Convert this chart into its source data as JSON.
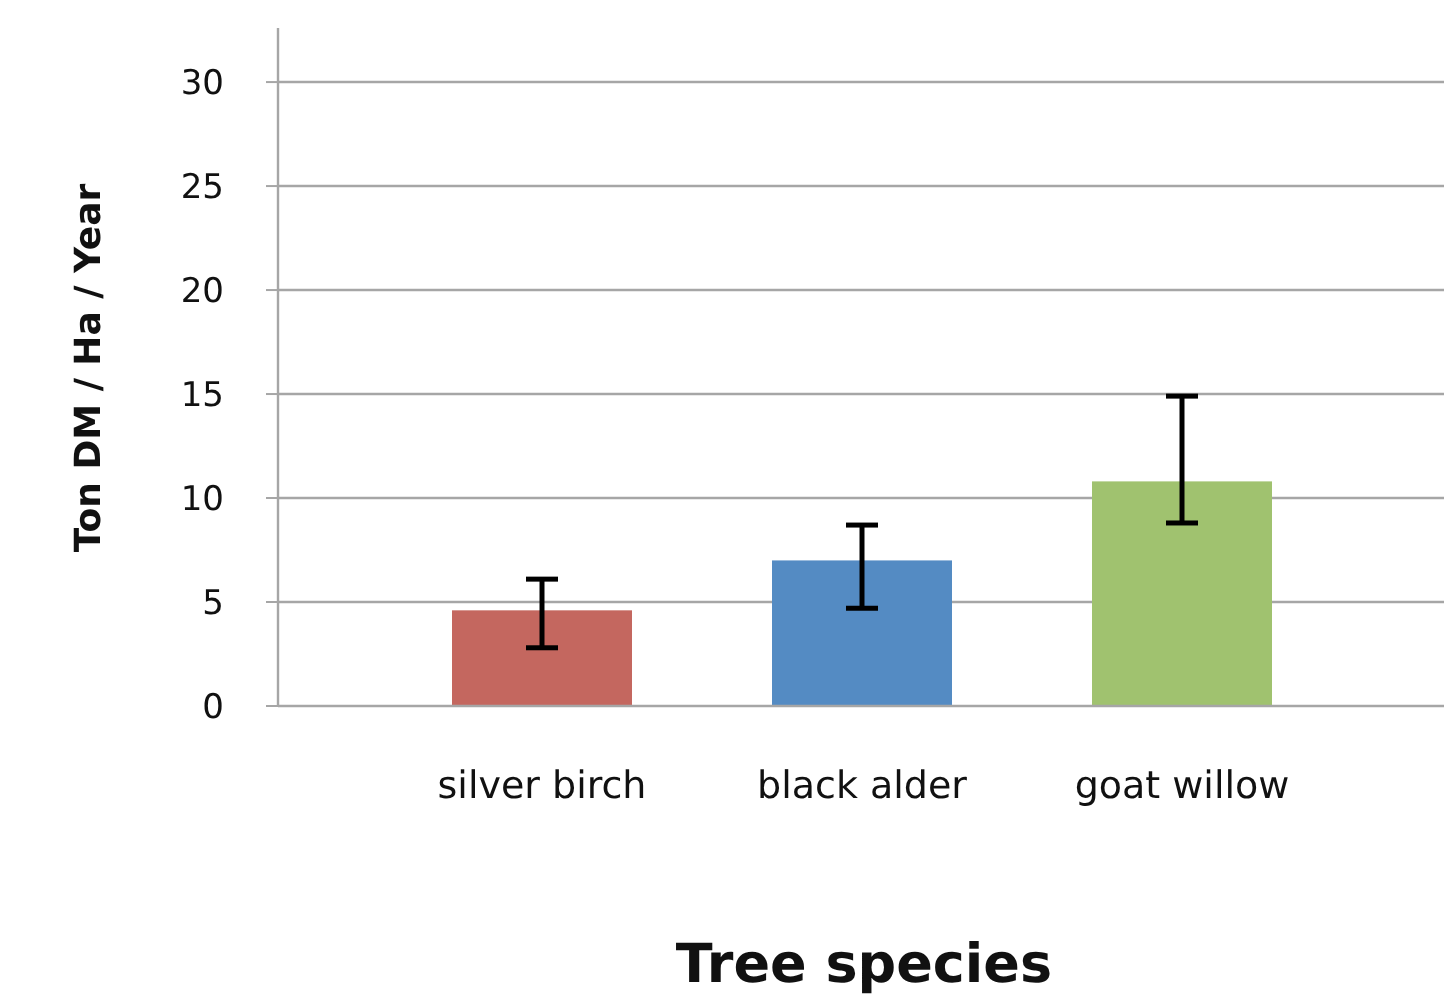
{
  "chart_data": {
    "type": "bar",
    "xlabel": "Tree species",
    "ylabel": "Ton DM / Ha / Year",
    "categories": [
      "silver birch",
      "black alder",
      "goat willow"
    ],
    "values": [
      4.6,
      7.0,
      10.8
    ],
    "colors": [
      "#c4675f",
      "#548bc3",
      "#a0c26f"
    ],
    "errors": [
      [
        2.8,
        6.1
      ],
      [
        4.7,
        8.7
      ],
      [
        8.8,
        14.9
      ]
    ],
    "ylim": [
      0,
      32.6
    ],
    "yticks": [
      0,
      5,
      10,
      15,
      20,
      25,
      30
    ],
    "grid": "y"
  }
}
